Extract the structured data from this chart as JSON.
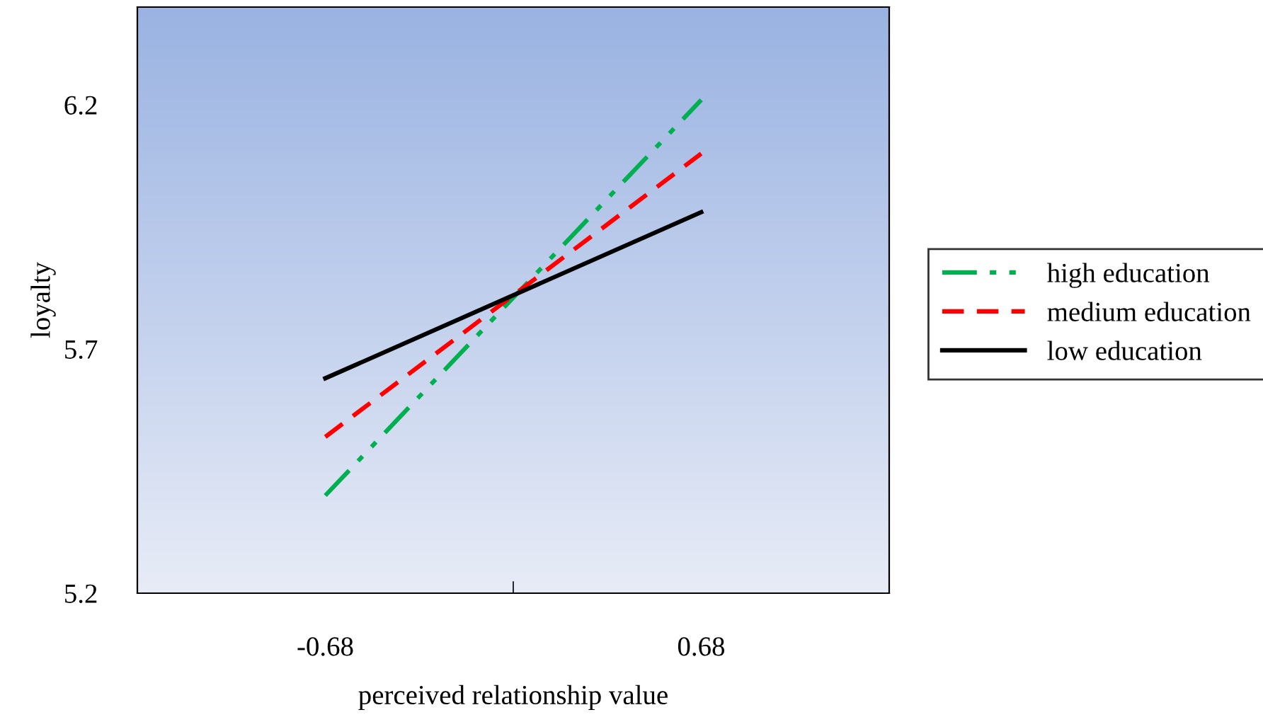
{
  "chart_data": {
    "type": "line",
    "xlabel": "perceived relationship value",
    "ylabel": "loyalty",
    "categories": [
      "-0.68",
      "0.68"
    ],
    "series": [
      {
        "name": "high education",
        "color": "#00b050",
        "line_style": "dashdot",
        "values": [
          5.4,
          6.21
        ]
      },
      {
        "name": "medium education",
        "color": "#ff0000",
        "line_style": "dashed",
        "values": [
          5.52,
          6.1
        ]
      },
      {
        "name": "low education",
        "color": "#000000",
        "line_style": "solid",
        "values": [
          5.64,
          5.98
        ]
      }
    ],
    "ylim": [
      5.2,
      6.4
    ],
    "yticks": [
      5.2,
      5.7,
      6.2
    ],
    "grid": false,
    "legend": "right",
    "marker": "none"
  }
}
